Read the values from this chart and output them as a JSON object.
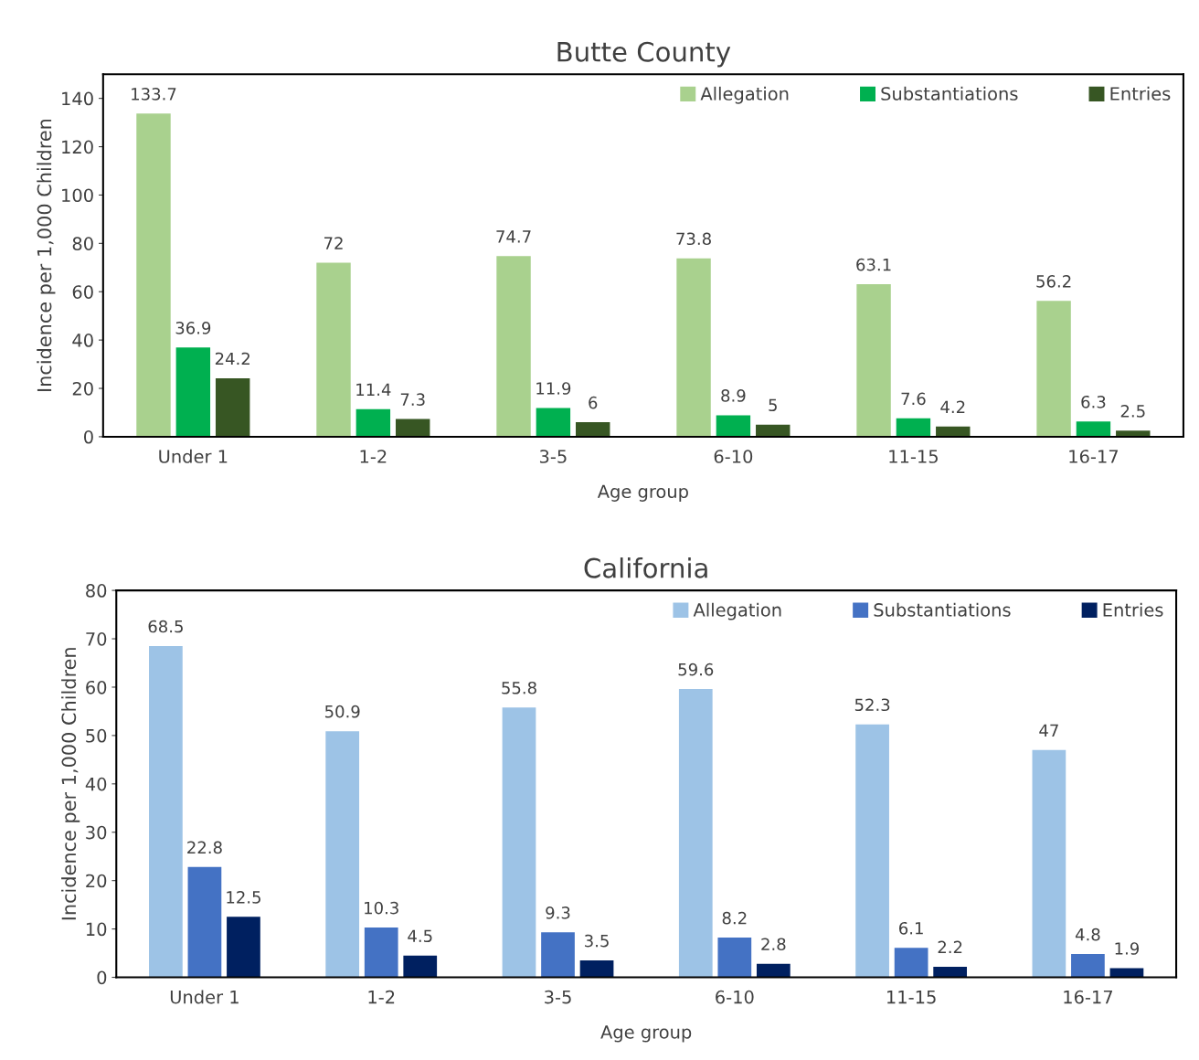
{
  "chart_data": [
    {
      "type": "bar",
      "title": "Butte County",
      "xlabel": "Age group",
      "ylabel": "Incidence per 1,000 Children",
      "categories": [
        "Under 1",
        "1-2",
        "3-5",
        "6-10",
        "11-15",
        "16-17"
      ],
      "ylim": [
        0,
        150
      ],
      "yticks": [
        0,
        20,
        40,
        60,
        80,
        100,
        120,
        140
      ],
      "grid": false,
      "legend": "top right",
      "data_labels": true,
      "series": [
        {
          "name": "Allegation",
          "color": "#a9d18e",
          "values": [
            133.7,
            72,
            74.7,
            73.8,
            63.1,
            56.2
          ]
        },
        {
          "name": "Substantiations",
          "color": "#00b050",
          "values": [
            36.9,
            11.4,
            11.9,
            8.9,
            7.6,
            6.3
          ]
        },
        {
          "name": "Entries",
          "color": "#375623",
          "values": [
            24.2,
            7.3,
            6,
            5,
            4.2,
            2.5
          ]
        }
      ]
    },
    {
      "type": "bar",
      "title": "California",
      "xlabel": "Age group",
      "ylabel": "Incidence per 1,000 Children",
      "categories": [
        "Under 1",
        "1-2",
        "3-5",
        "6-10",
        "11-15",
        "16-17"
      ],
      "ylim": [
        0,
        80
      ],
      "yticks": [
        0,
        10,
        20,
        30,
        40,
        50,
        60,
        70,
        80
      ],
      "grid": false,
      "legend": "top right",
      "data_labels": true,
      "series": [
        {
          "name": "Allegation",
          "color": "#9dc3e6",
          "values": [
            68.5,
            50.9,
            55.8,
            59.6,
            52.3,
            47
          ]
        },
        {
          "name": "Substantiations",
          "color": "#4472c4",
          "values": [
            22.8,
            10.3,
            9.3,
            8.2,
            6.1,
            4.8
          ]
        },
        {
          "name": "Entries",
          "color": "#002060",
          "values": [
            12.5,
            4.5,
            3.5,
            2.8,
            2.2,
            1.9
          ]
        }
      ]
    }
  ]
}
